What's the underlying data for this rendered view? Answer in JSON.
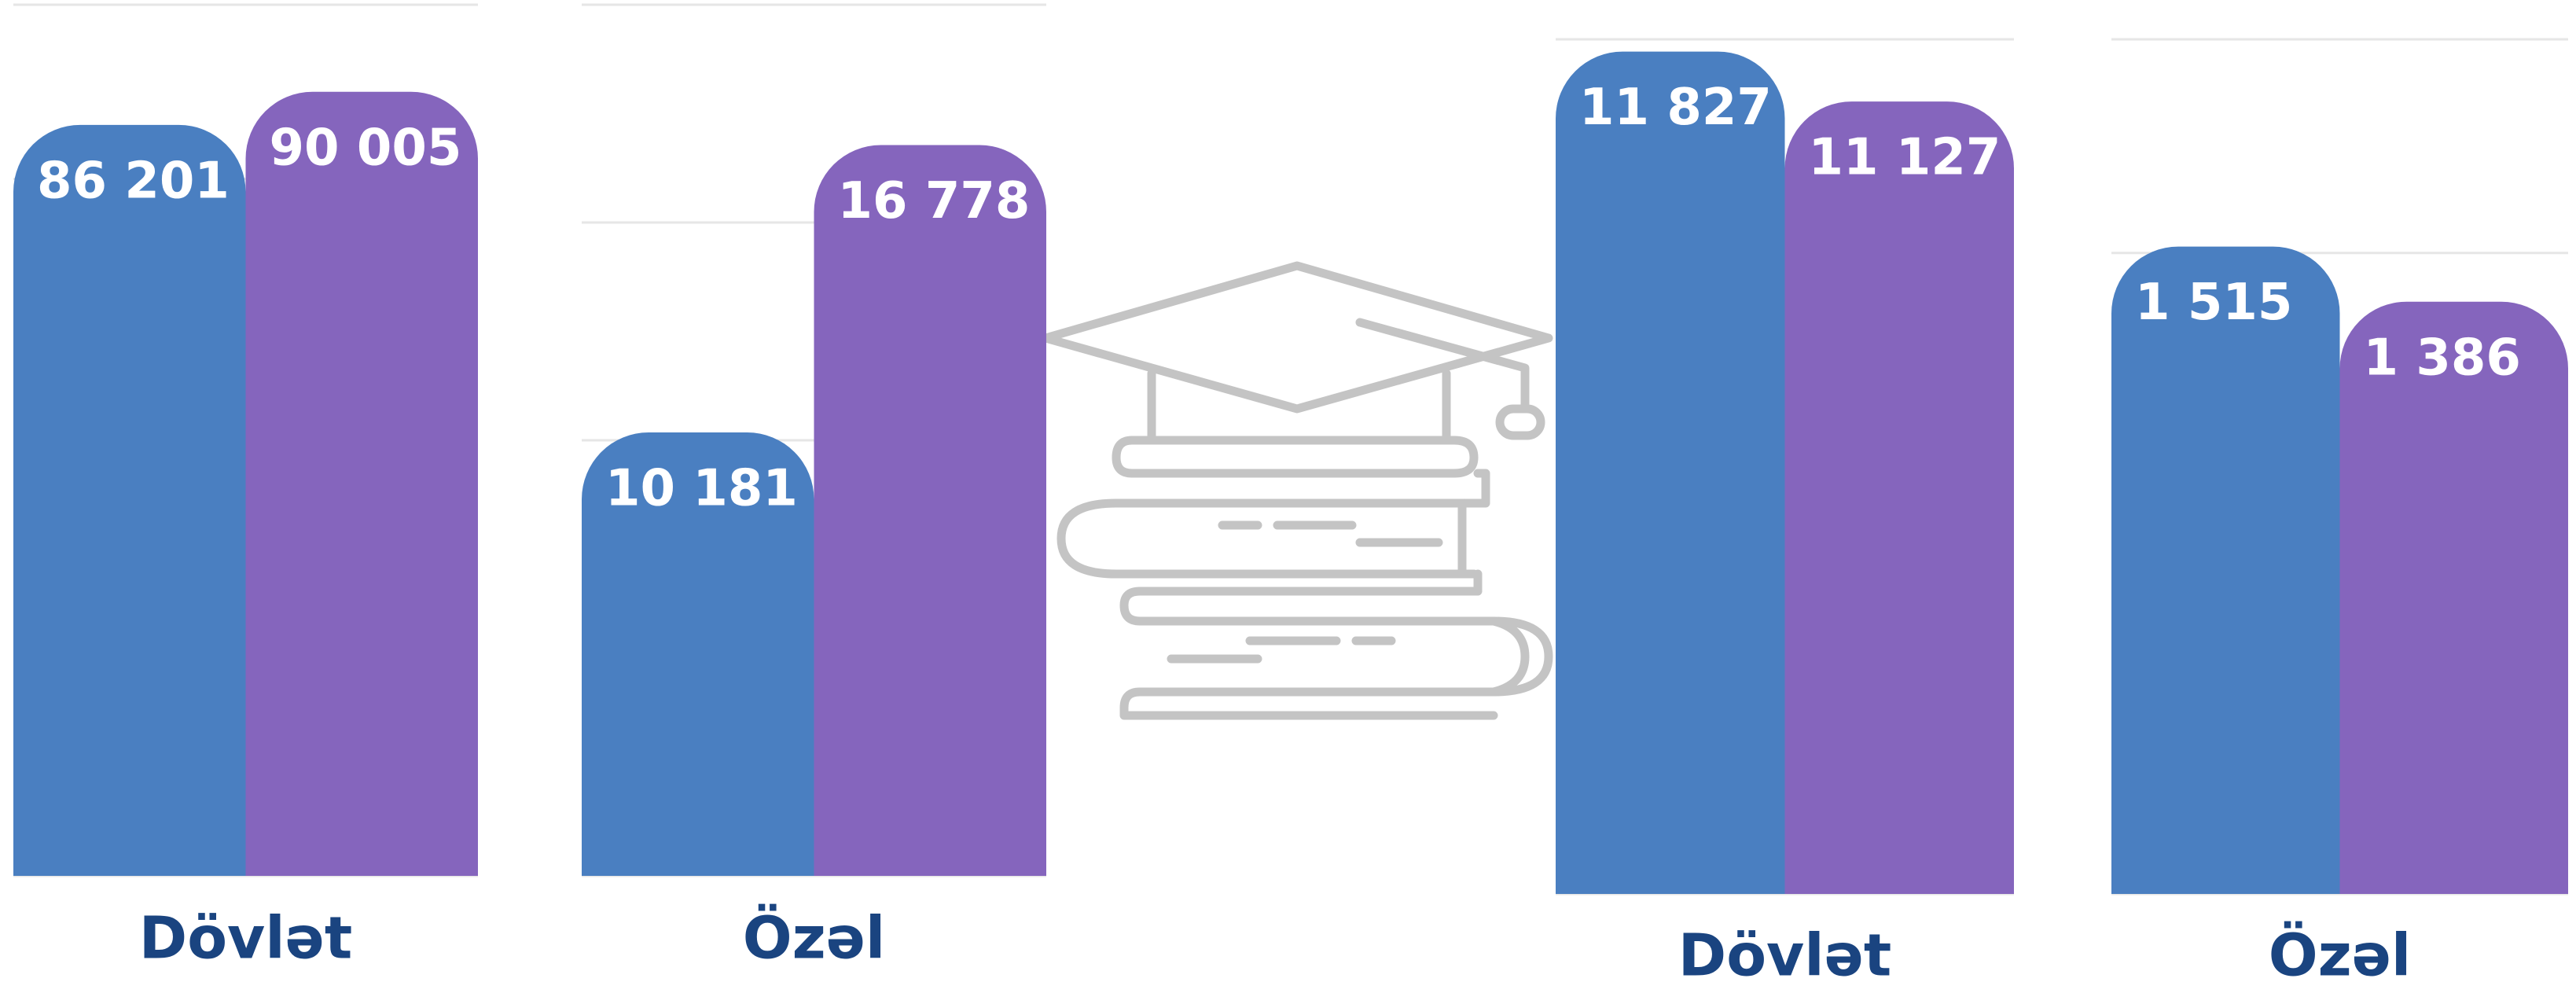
{
  "chart_data": [
    {
      "type": "bar",
      "categories": [
        "Dövlət"
      ],
      "ylim": [
        0,
        100000
      ],
      "yticks": [
        0,
        20000,
        40000,
        60000,
        80000,
        100000
      ],
      "grid": true,
      "series": [
        {
          "color": "#4a7fc1",
          "values": [
            86201
          ],
          "value_labels": [
            "86 201"
          ]
        },
        {
          "color": "#8565bd",
          "values": [
            90005
          ],
          "value_labels": [
            "90 005"
          ]
        }
      ]
    },
    {
      "type": "bar",
      "categories": [
        "Özəl"
      ],
      "ylim": [
        0,
        20000
      ],
      "yticks": [
        0,
        5000,
        10000,
        15000,
        20000
      ],
      "grid": true,
      "series": [
        {
          "color": "#4a7fc1",
          "values": [
            10181
          ],
          "value_labels": [
            "10 181"
          ]
        },
        {
          "color": "#8565bd",
          "values": [
            16778
          ],
          "value_labels": [
            "16 778"
          ]
        }
      ]
    },
    {
      "type": "bar",
      "categories": [
        "Dövlət"
      ],
      "ylim": [
        0,
        12000
      ],
      "yticks": [
        0,
        2000,
        4000,
        6000,
        8000,
        10000,
        12000
      ],
      "grid": true,
      "series": [
        {
          "color": "#4a7fc1",
          "values": [
            11827
          ],
          "value_labels": [
            "11 827"
          ]
        },
        {
          "color": "#8565bd",
          "values": [
            11127
          ],
          "value_labels": [
            "11 127"
          ]
        }
      ]
    },
    {
      "type": "bar",
      "categories": [
        "Özəl"
      ],
      "ylim": [
        0,
        2000
      ],
      "yticks": [
        0,
        500,
        1000,
        1500,
        2000
      ],
      "grid": true,
      "series": [
        {
          "color": "#4a7fc1",
          "values": [
            1515
          ],
          "value_labels": [
            "1 515"
          ]
        },
        {
          "color": "#8565bd",
          "values": [
            1386
          ],
          "value_labels": [
            "1 386"
          ]
        }
      ]
    }
  ]
}
